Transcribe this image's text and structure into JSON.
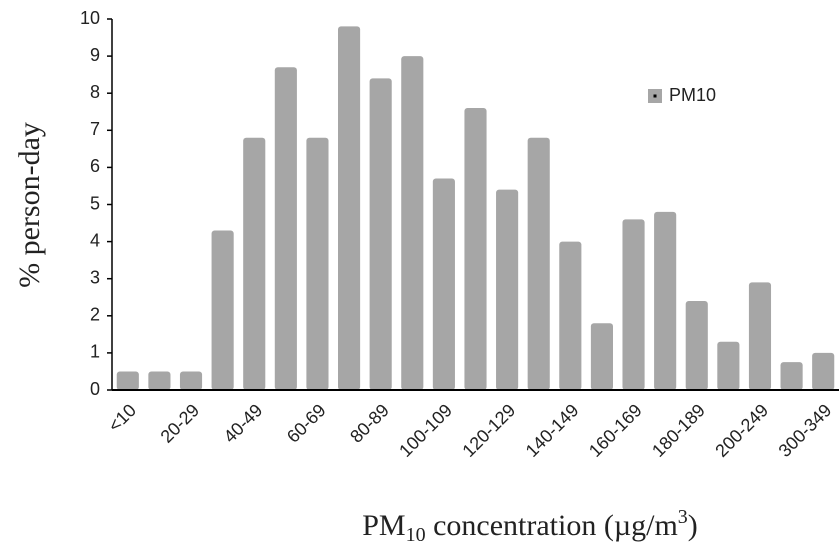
{
  "chart_data": {
    "type": "bar",
    "x_label": [
      "PM",
      "10",
      " concentration (µg/m",
      "3",
      ")"
    ],
    "y_label": "% person-day",
    "categories": [
      "<10",
      null,
      "20-29",
      null,
      "40-49",
      null,
      "60-69",
      null,
      "80-89",
      null,
      "100-109",
      null,
      "120-129",
      null,
      "140-149",
      null,
      "160-169",
      null,
      "180-189",
      null,
      "200-249",
      null,
      "300-349"
    ],
    "series": [
      {
        "name": "PM10",
        "color": "#a6a6a6",
        "values": [
          0.5,
          0.5,
          0.5,
          4.3,
          6.8,
          8.7,
          6.8,
          9.8,
          8.4,
          9.0,
          5.7,
          7.6,
          5.4,
          6.8,
          4.0,
          1.8,
          4.6,
          4.8,
          2.4,
          1.3,
          2.9,
          0.75,
          1.0
        ]
      }
    ],
    "ylim": [
      0,
      10
    ],
    "yticks": [
      0,
      1,
      2,
      3,
      4,
      5,
      6,
      7,
      8,
      9,
      10
    ],
    "grid": false,
    "legend": "upper-right"
  }
}
